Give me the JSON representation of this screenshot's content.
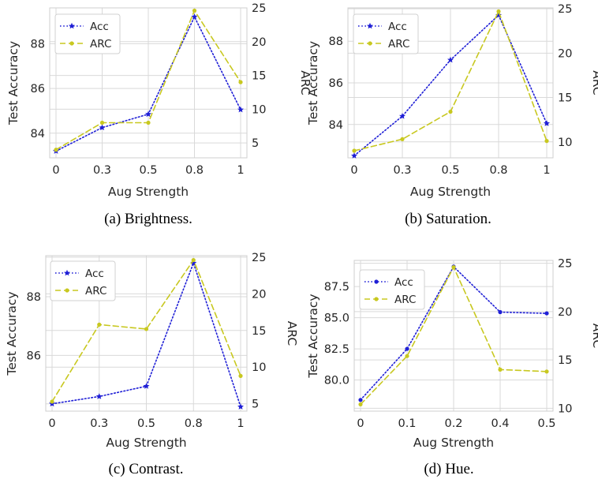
{
  "chart_data": [
    {
      "type": "line",
      "caption": "(a) Brightness.",
      "categories": [
        "0",
        "0.3",
        "0.5",
        "0.8",
        "1"
      ],
      "xlabel": "Aug Strength",
      "ylabel": "Test Accuracy",
      "ylabel_right": "ARC",
      "ylim": [
        82.9,
        89.6
      ],
      "yticks": [
        84,
        86,
        88
      ],
      "ylim_right": [
        2.8,
        25.0
      ],
      "yticks_right": [
        5,
        10,
        15,
        20,
        25
      ],
      "legend": "top-left",
      "grid": true,
      "series": [
        {
          "name": "Acc",
          "axis": "left",
          "color": "#1f1fd6",
          "style": "dotted",
          "marker": "star",
          "values": [
            83.2,
            84.25,
            84.85,
            89.2,
            85.05
          ]
        },
        {
          "name": "ARC",
          "axis": "right",
          "color": "#c8c820",
          "style": "dashed",
          "marker": "circle",
          "values": [
            4.0,
            8.0,
            8.0,
            24.6,
            14.0
          ]
        }
      ]
    },
    {
      "type": "line",
      "caption": "(b) Saturation.",
      "categories": [
        "0",
        "0.3",
        "0.5",
        "0.8",
        "1"
      ],
      "xlabel": "Aug Strength",
      "ylabel": "Test Accuracy",
      "ylabel_right": "ARC",
      "ylim": [
        82.4,
        89.6
      ],
      "yticks": [
        84,
        86,
        88
      ],
      "ylim_right": [
        8.2,
        25.1
      ],
      "yticks_right": [
        10,
        15,
        20,
        25
      ],
      "legend": "top-left",
      "grid": true,
      "series": [
        {
          "name": "Acc",
          "axis": "left",
          "color": "#1f1fd6",
          "style": "dotted",
          "marker": "star",
          "values": [
            82.5,
            84.4,
            87.1,
            89.25,
            84.05
          ]
        },
        {
          "name": "ARC",
          "axis": "right",
          "color": "#c8c820",
          "style": "dashed",
          "marker": "circle",
          "values": [
            9.0,
            10.3,
            13.4,
            24.7,
            10.1
          ]
        }
      ]
    },
    {
      "type": "line",
      "caption": "(c) Contrast.",
      "categories": [
        "0",
        "0.3",
        "0.5",
        "0.8",
        "1"
      ],
      "xlabel": "Aug Strength",
      "ylabel": "Test Accuracy",
      "ylabel_right": "ARC",
      "ylim": [
        84.1,
        89.4
      ],
      "yticks": [
        86,
        88
      ],
      "ylim_right": [
        4.0,
        25.2
      ],
      "yticks_right": [
        5,
        10,
        15,
        20,
        25
      ],
      "legend": "top-left",
      "grid": true,
      "series": [
        {
          "name": "Acc",
          "axis": "left",
          "color": "#1f1fd6",
          "style": "dotted",
          "marker": "star",
          "values": [
            84.35,
            84.6,
            84.95,
            89.15,
            84.25
          ]
        },
        {
          "name": "ARC",
          "axis": "right",
          "color": "#c8c820",
          "style": "dashed",
          "marker": "circle",
          "values": [
            5.3,
            15.8,
            15.2,
            24.6,
            8.8
          ]
        }
      ]
    },
    {
      "type": "line",
      "caption": "(d) Hue.",
      "categories": [
        "0",
        "0.1",
        "0.2",
        "0.4",
        "0.5"
      ],
      "xlabel": "Aug Strength",
      "ylabel": "Test Accuracy",
      "ylabel_right": "ARC",
      "ylim": [
        77.5,
        89.6
      ],
      "yticks": [
        80.0,
        82.5,
        85.0,
        87.5
      ],
      "ytick_labels": [
        "80.0",
        "82.5",
        "85.0",
        "87.5"
      ],
      "ylim_right": [
        9.7,
        25.3
      ],
      "yticks_right": [
        10,
        15,
        20,
        25
      ],
      "legend": "top-left",
      "grid": true,
      "series": [
        {
          "name": "Acc",
          "axis": "left",
          "color": "#1f1fd6",
          "style": "dotted",
          "marker": "circle",
          "values": [
            78.4,
            82.5,
            89.1,
            85.45,
            85.35
          ]
        },
        {
          "name": "ARC",
          "axis": "right",
          "color": "#c8c820",
          "style": "dashed",
          "marker": "circle",
          "values": [
            10.4,
            15.4,
            24.6,
            14.0,
            13.8
          ]
        }
      ]
    }
  ]
}
